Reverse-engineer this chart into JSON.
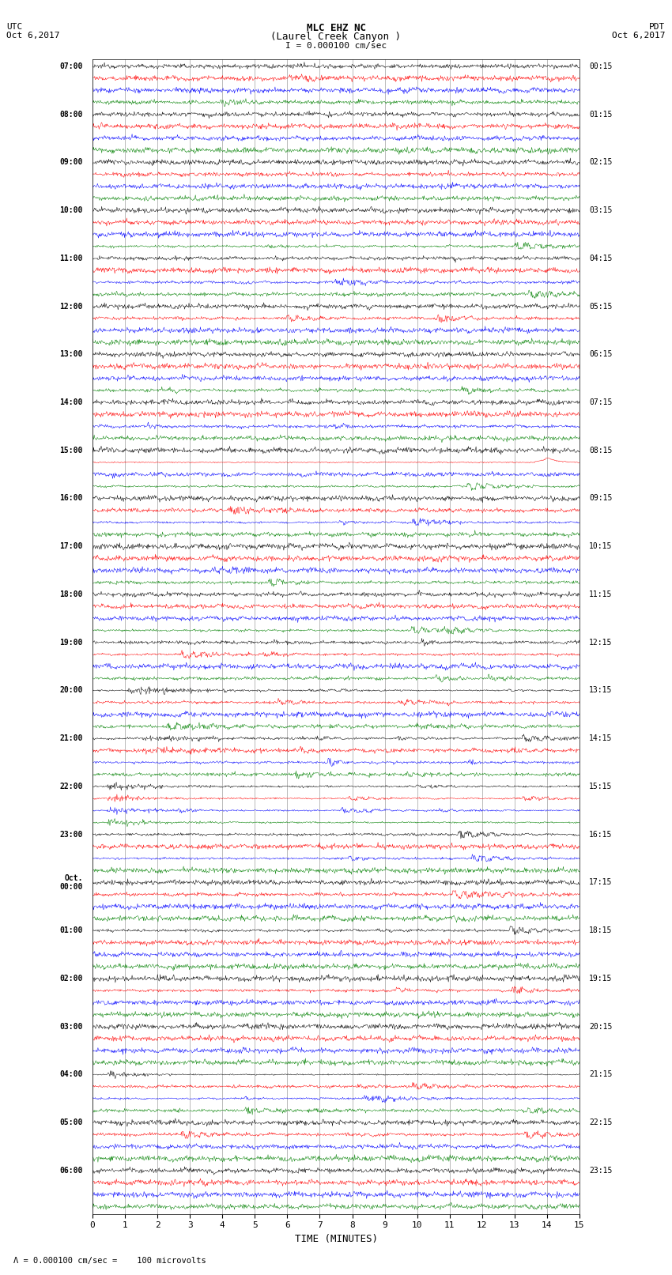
{
  "title_line1": "MLC EHZ NC",
  "title_line2": "(Laurel Creek Canyon )",
  "scale_text": "I = 0.000100 cm/sec",
  "footer_text": "\\u039b = 0.000100 cm/sec =    100 microvolts",
  "left_header_line1": "UTC",
  "left_header_line2": "Oct 6,2017",
  "right_header_line1": "PDT",
  "right_header_line2": "Oct 6,2017",
  "xlabel": "TIME (MINUTES)",
  "xlim": [
    0,
    15
  ],
  "xticks": [
    0,
    1,
    2,
    3,
    4,
    5,
    6,
    7,
    8,
    9,
    10,
    11,
    12,
    13,
    14,
    15
  ],
  "background_color": "#ffffff",
  "trace_colors": [
    "black",
    "red",
    "blue",
    "green"
  ],
  "n_groups": 24,
  "samples_per_row": 900,
  "left_labels_utc": [
    "07:00",
    "08:00",
    "09:00",
    "10:00",
    "11:00",
    "12:00",
    "13:00",
    "14:00",
    "15:00",
    "16:00",
    "17:00",
    "18:00",
    "19:00",
    "20:00",
    "21:00",
    "22:00",
    "23:00",
    "Oct.\n00:00",
    "01:00",
    "02:00",
    "03:00",
    "04:00",
    "05:00",
    "06:00"
  ],
  "right_labels_pdt": [
    "00:15",
    "01:15",
    "02:15",
    "03:15",
    "04:15",
    "05:15",
    "06:15",
    "07:15",
    "08:15",
    "09:15",
    "10:15",
    "11:15",
    "12:15",
    "13:15",
    "14:15",
    "15:15",
    "16:15",
    "17:15",
    "18:15",
    "19:15",
    "20:15",
    "21:15",
    "22:15",
    "23:15"
  ],
  "grid_color": "#888888",
  "grid_linewidth": 0.4
}
